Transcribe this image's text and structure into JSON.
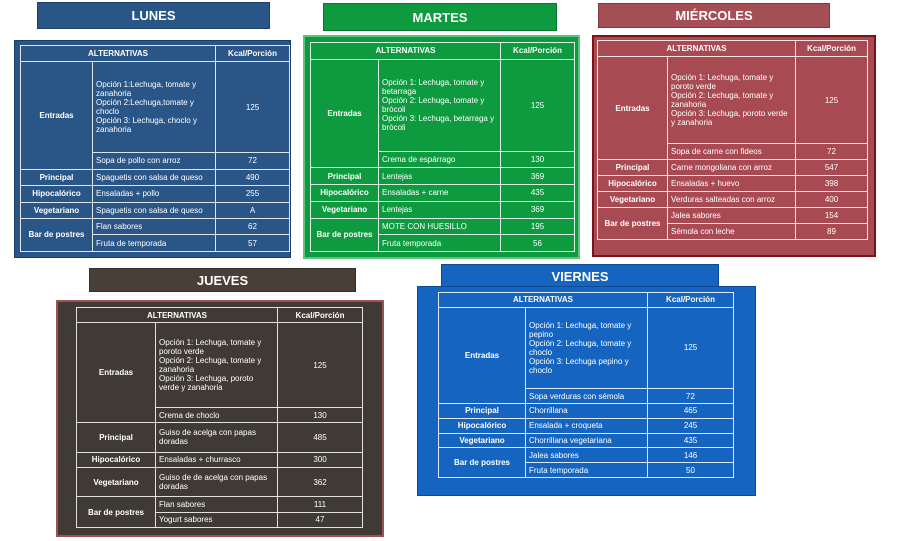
{
  "days": [
    {
      "title": "LUNES",
      "header": [
        "ALTERNATIVAS",
        "Kcal/Porción"
      ],
      "groups": [
        {
          "category": "Entradas",
          "items": [
            {
              "text": [
                "Opción 1:Lechuga, tomate y zanahoria",
                "Opción 2:Lechuga,tomate y choclo",
                "Opción 3: Lechuga, choclo y zanahoria"
              ],
              "kcal": 125
            },
            {
              "text": [
                "Sopa de pollo con arroz"
              ],
              "kcal": 72
            }
          ]
        },
        {
          "category": "Principal",
          "items": [
            {
              "text": [
                "Spaguetis con salsa de queso"
              ],
              "kcal": 490
            }
          ]
        },
        {
          "category": "Hipocalórico",
          "items": [
            {
              "text": [
                "Ensaladas + pollo"
              ],
              "kcal": 255
            }
          ]
        },
        {
          "category": "Vegetariano",
          "items": [
            {
              "text": [
                "Spaguetis con salsa de queso"
              ],
              "kcal": "A"
            }
          ]
        },
        {
          "category": "Bar de postres",
          "items": [
            {
              "text": [
                "Flan sabores"
              ],
              "kcal": 62
            },
            {
              "text": [
                "Fruta de temporada"
              ],
              "kcal": 57
            }
          ]
        }
      ]
    },
    {
      "title": "MARTES",
      "header": [
        "ALTERNATIVAS",
        "Kcal/Porción"
      ],
      "groups": [
        {
          "category": "Entradas",
          "items": [
            {
              "text": [
                "Opción 1: Lechuga, tomate y betarraga",
                "Opción 2: Lechuga, tomate y brócoli",
                "Opción 3: Lechuga, betarraga y brócoli"
              ],
              "kcal": 125
            },
            {
              "text": [
                "Crema de espárrago"
              ],
              "kcal": 130
            }
          ]
        },
        {
          "category": "Principal",
          "items": [
            {
              "text": [
                "Lentejas"
              ],
              "kcal": 369
            }
          ]
        },
        {
          "category": "Hipocalórico",
          "items": [
            {
              "text": [
                "Ensaladas  + carne"
              ],
              "kcal": 435
            }
          ]
        },
        {
          "category": "Vegetariano",
          "items": [
            {
              "text": [
                "Lentejas"
              ],
              "kcal": 369
            }
          ]
        },
        {
          "category": "Bar de postres",
          "items": [
            {
              "text": [
                "MOTE CON HUESILLO"
              ],
              "kcal": 195
            },
            {
              "text": [
                "Fruta temporada"
              ],
              "kcal": 56
            }
          ]
        }
      ]
    },
    {
      "title": "MIÉRCOLES",
      "header": [
        "ALTERNATIVAS",
        "Kcal/Porción"
      ],
      "groups": [
        {
          "category": "Entradas",
          "items": [
            {
              "text": [
                "Opción 1: Lechuga, tomate y poroto verde",
                "Opción 2: Lechuga, tomate y zanahoria",
                "Opción 3: Lechuga, poroto verde y zanahoria"
              ],
              "kcal": 125
            },
            {
              "text": [
                "Sopa de carne con fideos"
              ],
              "kcal": 72
            }
          ]
        },
        {
          "category": "Principal",
          "items": [
            {
              "text": [
                "Carne mongoliana con arroz"
              ],
              "kcal": 547
            }
          ]
        },
        {
          "category": "Hipocalórico",
          "items": [
            {
              "text": [
                "Ensaladas + huevo"
              ],
              "kcal": 398
            }
          ]
        },
        {
          "category": "Vegetariano",
          "items": [
            {
              "text": [
                "Verduras salteadas con arroz"
              ],
              "kcal": 400
            }
          ]
        },
        {
          "category": "Bar de postres",
          "items": [
            {
              "text": [
                "Jalea sabores"
              ],
              "kcal": 154
            },
            {
              "text": [
                "Sémola con leche"
              ],
              "kcal": 89
            }
          ]
        }
      ]
    },
    {
      "title": "JUEVES",
      "header": [
        "ALTERNATIVAS",
        "Kcal/Porción"
      ],
      "groups": [
        {
          "category": "Entradas",
          "items": [
            {
              "text": [
                "Opción 1: Lechuga, tomate y poroto verde",
                "Opción 2: Lechuga, tomate y zanahoria",
                "Opción 3: Lechuga, poroto verde y zanahoria"
              ],
              "kcal": 125
            },
            {
              "text": [
                "Crema de choclo"
              ],
              "kcal": 130
            }
          ]
        },
        {
          "category": "Principal",
          "items": [
            {
              "text": [
                "Guiso de acelga con papas doradas"
              ],
              "kcal": 485
            }
          ]
        },
        {
          "category": "Hipocalórico",
          "items": [
            {
              "text": [
                "Ensaladas + churrasco"
              ],
              "kcal": 300
            }
          ]
        },
        {
          "category": "Vegetariano",
          "items": [
            {
              "text": [
                "Guiso de de acelga con papas doradas"
              ],
              "kcal": 362
            }
          ]
        },
        {
          "category": "Bar de postres",
          "items": [
            {
              "text": [
                "Flan sabores"
              ],
              "kcal": 111
            },
            {
              "text": [
                "Yogurt sabores"
              ],
              "kcal": 47
            }
          ]
        }
      ]
    },
    {
      "title": "VIERNES",
      "header": [
        "ALTERNATIVAS",
        "Kcal/Porción"
      ],
      "groups": [
        {
          "category": "Entradas",
          "items": [
            {
              "text": [
                "Opción 1: Lechuga, tomate y pepino",
                "Opción 2: Lechuga, tomate y choclo",
                "Opción 3: Lechuga pepino y choclo"
              ],
              "kcal": 125
            },
            {
              "text": [
                "Sopa verduras con sémola"
              ],
              "kcal": 72
            }
          ]
        },
        {
          "category": "Principal",
          "items": [
            {
              "text": [
                "Chorrillana"
              ],
              "kcal": 465
            }
          ]
        },
        {
          "category": "Hipocalórico",
          "items": [
            {
              "text": [
                "Ensalada + croqueta"
              ],
              "kcal": 245
            }
          ]
        },
        {
          "category": "Vegetariano",
          "items": [
            {
              "text": [
                "Chorrillana vegetariana"
              ],
              "kcal": 435
            }
          ]
        },
        {
          "category": "Bar de postres",
          "items": [
            {
              "text": [
                "Jalea sabores"
              ],
              "kcal": 146
            },
            {
              "text": [
                "Fruta temporada"
              ],
              "kcal": 50
            }
          ]
        }
      ]
    }
  ]
}
